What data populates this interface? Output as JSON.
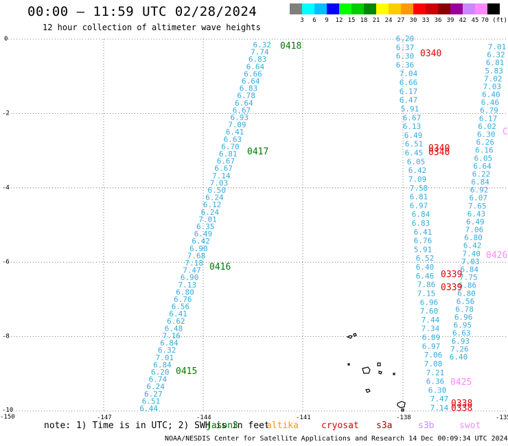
{
  "title": "00:00 — 11:59 UTC 02/28/2024",
  "subtitle": "12 hour collection of altimeter wave heights",
  "legend": {
    "labels": [
      "3",
      "6",
      "9",
      "12",
      "15",
      "18",
      "21",
      "24",
      "27",
      "30",
      "33",
      "36",
      "39",
      "42",
      "45",
      "70 (ft)"
    ],
    "colors": [
      "#7f7f7f",
      "#00ffff",
      "#00bfff",
      "#0000ff",
      "#00ff00",
      "#00cc00",
      "#008800",
      "#ffff00",
      "#ffcc00",
      "#ff9900",
      "#ff0000",
      "#cc0000",
      "#880000",
      "#990099",
      "#cc88ff",
      "#ff88ff",
      "#000000"
    ]
  },
  "axes": {
    "lat_labels": [
      "0",
      "-2",
      "-4",
      "-6",
      "-8",
      "-10"
    ],
    "lon_labels": [
      "-150",
      "-147",
      "-144",
      "-141",
      "-138",
      "-135"
    ]
  },
  "passes": [
    {
      "time": "0418",
      "color": "#007700"
    },
    {
      "time": "0417",
      "color": "#007700"
    },
    {
      "time": "0416",
      "color": "#007700"
    },
    {
      "time": "0415",
      "color": "#007700"
    },
    {
      "time": "0340",
      "color": "#dd0000"
    },
    {
      "time": "0340",
      "color": "#dd0000"
    },
    {
      "time": "0339",
      "color": "#dd0000"
    },
    {
      "time": "0339",
      "color": "#dd0000"
    },
    {
      "time": "0338",
      "color": "#dd0000"
    },
    {
      "time": "0426",
      "color": "#ff88ff"
    },
    {
      "time": "0425",
      "color": "#ff88ff"
    }
  ],
  "track_jason3": [
    "6.32",
    "7.74",
    "6.83",
    "6.64",
    "6.66",
    "6.64",
    "6.83",
    "6.78",
    "6.64",
    "6.67",
    "6.93",
    "7.09",
    "6.41",
    "6.63",
    "6.70",
    "6.81",
    "6.67",
    "6.67",
    "7.14",
    "7.03",
    "6.50",
    "6.24",
    "6.12",
    "6.24",
    "7.01",
    "6.35",
    "6.49",
    "6.42",
    "6.90",
    "7.68",
    "7.18",
    "7.47",
    "6.90",
    "7.13",
    "6.80",
    "6.76",
    "6.56",
    "6.41",
    "6.62",
    "6.48",
    "7.16",
    "6.84",
    "6.32",
    "7.01",
    "6.84",
    "6.20",
    "6.74",
    "6.24",
    "6.27",
    "6.51",
    "6.44"
  ],
  "track_cryosat_a": [
    "6.20",
    "6.37",
    "6.30",
    "6.36",
    "7.04",
    "6.66",
    "6.17",
    "6.47",
    "5.91",
    "6.67",
    "6.13",
    "6.49",
    "6.51",
    "6.45",
    "6.05",
    "6.42",
    "7.09",
    "7.58",
    "6.81",
    "6.97",
    "6.84",
    "6.83",
    "6.41",
    "6.76",
    "5.91",
    "6.52",
    "6.40",
    "6.46",
    "7.86",
    "7.15",
    "6.96",
    "7.60",
    "7.44",
    "7.34",
    "6.89",
    "6.97",
    "7.06",
    "7.08",
    "7.21",
    "6.36",
    "6.30",
    "7.47",
    "7.14"
  ],
  "track_cryosat_b": [
    "7.01",
    "6.32",
    "6.81",
    "5.83",
    "7.02",
    "7.03",
    "6.40",
    "6.46",
    "6.79",
    "6.17",
    "6.02",
    "6.30",
    "6.26",
    "6.16",
    "6.05",
    "6.64",
    "6.22",
    "6.84",
    "6.92",
    "6.07",
    "7.65",
    "6.43",
    "6.49",
    "7.06",
    "6.80",
    "6.42",
    "7.40",
    "7.03",
    "6.84",
    "7.75",
    "6.86",
    "6.80",
    "6.56",
    "6.78",
    "6.96",
    "6.95",
    "6.63",
    "6.93",
    "7.26",
    "6.40"
  ],
  "notes": {
    "text": "note: 1) Time is in UTC; 2) SWH is in feet",
    "missions": [
      {
        "name": "jason3",
        "color": "#007700"
      },
      {
        "name": "altika",
        "color": "#ff9900"
      },
      {
        "name": "cryosat",
        "color": "#dd0000"
      },
      {
        "name": "s3a",
        "color": "#aa0000"
      },
      {
        "name": "s3b",
        "color": "#cc88ff"
      },
      {
        "name": "swot",
        "color": "#ff88ff"
      }
    ]
  },
  "footer": "NOAA/NESDIS Center for Satellite Applications and Research    14 Dec 00:09:34 UTC 2024",
  "cut_label": "C"
}
